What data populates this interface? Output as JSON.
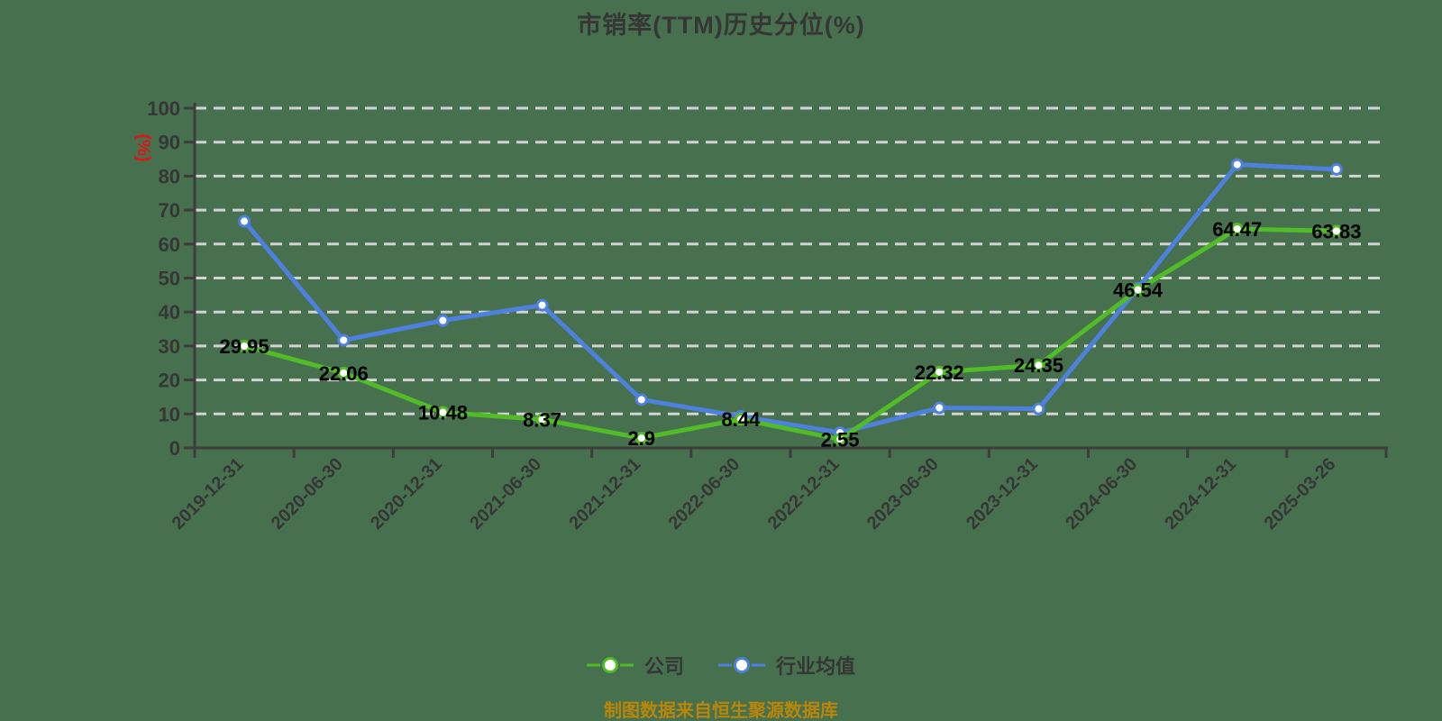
{
  "title": "市销率(TTM)历史分位(%)",
  "footer": {
    "source_note": "制图数据来自恒生聚源数据库"
  },
  "colors": {
    "background": "#47704F",
    "grid": "#D3D3D3",
    "axis": "#3D3D3D",
    "tick_label": "#363636",
    "data_label": "#000000",
    "unit_label": "#E01616",
    "company_series": "#52BB28",
    "industry_series": "#4E80DD",
    "marker_fill": "#FFFFFF",
    "footer_text": "#B8860B"
  },
  "chart_data": {
    "type": "line",
    "title": "市销率(TTM)历史分位(%)",
    "xlabel": "",
    "ylabel": "(%)",
    "ylim": [
      0,
      100
    ],
    "y_ticks": [
      0,
      10,
      20,
      30,
      40,
      50,
      60,
      70,
      80,
      90,
      100
    ],
    "grid": "horizontal-dashed",
    "legend_position": "bottom",
    "categories": [
      "2019-12-31",
      "2020-06-30",
      "2020-12-31",
      "2021-06-30",
      "2021-12-31",
      "2022-06-30",
      "2022-12-31",
      "2023-06-30",
      "2023-12-31",
      "2024-06-30",
      "2024-12-31",
      "2025-03-26"
    ],
    "series": [
      {
        "name": "公司",
        "color": "#52BB28",
        "show_labels": true,
        "values": [
          29.95,
          22.06,
          10.48,
          8.37,
          2.9,
          8.44,
          2.55,
          22.32,
          24.35,
          46.54,
          64.47,
          63.83
        ]
      },
      {
        "name": "行业均值",
        "color": "#4E80DD",
        "show_labels": false,
        "values_estimated": true,
        "values": [
          66.7,
          31.7,
          37.5,
          42,
          14.2,
          9.3,
          4.5,
          11.8,
          11.5,
          47,
          83.4,
          82
        ]
      }
    ]
  },
  "y_axis_unit_label": "(%)"
}
